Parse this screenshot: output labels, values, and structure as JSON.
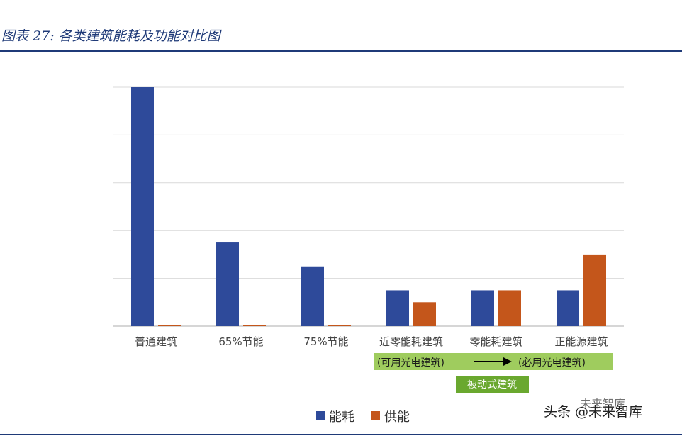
{
  "figure_title": "图表 27:  各类建筑能耗及功能对比图",
  "watermark": {
    "top_text": "未来智库",
    "main_text": "头条 @未来智库"
  },
  "colors": {
    "energy_use": "#2e4a9a",
    "energy_supply": "#c4561b",
    "grid": "#d9d9d9",
    "band_light": "#9fcc5e",
    "band_dark": "#6aa82f"
  },
  "annotations": {
    "band_left": "(可用光电建筑)",
    "band_right": "(必用光电建筑)",
    "passive_label": "被动式建筑"
  },
  "chart_data": {
    "type": "bar",
    "categories": [
      "普通建筑",
      "65%节能",
      "75%节能",
      "近零能耗建筑",
      "零能耗建筑",
      "正能源建筑"
    ],
    "series": [
      {
        "name": "能耗",
        "values": [
          100,
          35,
          25,
          15,
          15,
          15
        ]
      },
      {
        "name": "供能",
        "values": [
          0,
          0,
          0,
          10,
          15,
          30
        ]
      }
    ],
    "ylim": [
      0,
      100
    ],
    "y_gridlines": 5,
    "grid": true,
    "y_tick_labels_shown": false,
    "legend": "bottom"
  }
}
